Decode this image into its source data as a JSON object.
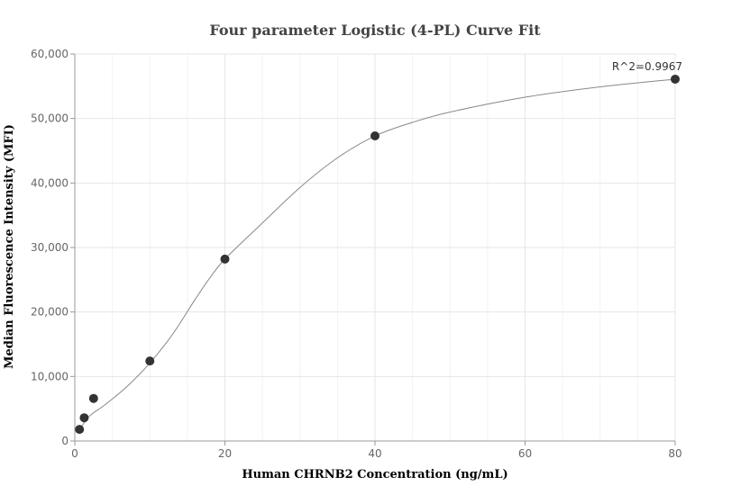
{
  "chart_data": {
    "type": "scatter",
    "title": "Four parameter Logistic (4-PL) Curve Fit",
    "xlabel": "Human CHRNB2 Concentration (ng/mL)",
    "ylabel": "Median Fluorescence Intensity (MFI)",
    "xlim": [
      0,
      80
    ],
    "ylim": [
      0,
      60000
    ],
    "x_ticks": [
      0,
      20,
      40,
      60,
      80
    ],
    "x_tick_labels": [
      "0",
      "20",
      "40",
      "60",
      "80"
    ],
    "y_ticks": [
      0,
      10000,
      20000,
      30000,
      40000,
      50000,
      60000
    ],
    "y_tick_labels": [
      "0",
      "10,000",
      "20,000",
      "30,000",
      "40,000",
      "50,000",
      "60,000"
    ],
    "grid": true,
    "points": [
      {
        "x": 0.625,
        "y": 1800
      },
      {
        "x": 1.25,
        "y": 3600
      },
      {
        "x": 2.5,
        "y": 6600
      },
      {
        "x": 10,
        "y": 12400
      },
      {
        "x": 20,
        "y": 28200
      },
      {
        "x": 40,
        "y": 47300
      },
      {
        "x": 80,
        "y": 56100
      }
    ],
    "fit_curve": [
      {
        "x": 0.625,
        "y": 1800
      },
      {
        "x": 2,
        "y": 3900
      },
      {
        "x": 4,
        "y": 5600
      },
      {
        "x": 7,
        "y": 8500
      },
      {
        "x": 10,
        "y": 12100
      },
      {
        "x": 13,
        "y": 16500
      },
      {
        "x": 16,
        "y": 21900
      },
      {
        "x": 18,
        "y": 25300
      },
      {
        "x": 20,
        "y": 28200
      },
      {
        "x": 25,
        "y": 33800
      },
      {
        "x": 30,
        "y": 39300
      },
      {
        "x": 35,
        "y": 43900
      },
      {
        "x": 40,
        "y": 47300
      },
      {
        "x": 45,
        "y": 49400
      },
      {
        "x": 50,
        "y": 51000
      },
      {
        "x": 60,
        "y": 53300
      },
      {
        "x": 70,
        "y": 54900
      },
      {
        "x": 80,
        "y": 56100
      }
    ],
    "annotation": {
      "text": "R^2=0.9967",
      "x": 80,
      "y": 56100
    },
    "colors": {
      "point": "#333333",
      "curve": "#888888",
      "grid": "#e6e6e6",
      "minor_grid": "#f2f2f2",
      "axis": "#999999"
    }
  }
}
